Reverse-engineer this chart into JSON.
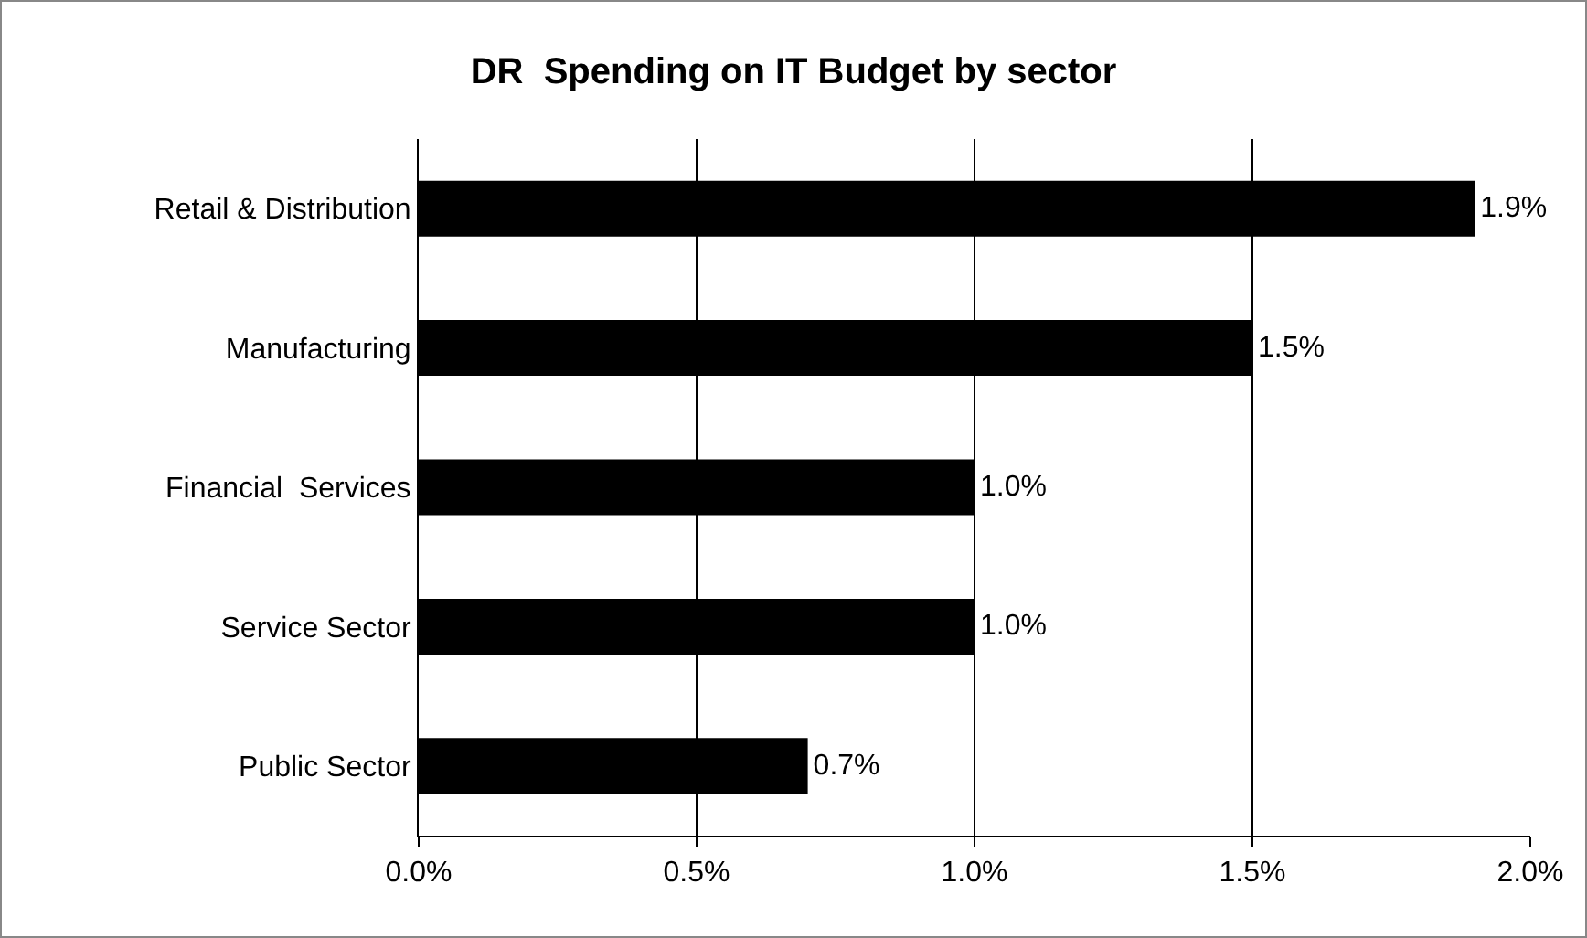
{
  "chart_data": {
    "type": "bar",
    "orientation": "horizontal",
    "title": "DR  Spending on IT Budget by sector",
    "categories": [
      "Retail & Distribution",
      "Manufacturing",
      "Financial  Services",
      "Service Sector",
      "Public Sector"
    ],
    "values": [
      1.9,
      1.5,
      1.0,
      1.0,
      0.7
    ],
    "value_labels": [
      "1.9%",
      "1.5%",
      "1.0%",
      "1.0%",
      "0.7%"
    ],
    "color": "#000000",
    "xlim": [
      0,
      2
    ],
    "xticks": [
      {
        "value": 0,
        "label": "0.0%"
      },
      {
        "value": 0.5,
        "label": "0.5%"
      },
      {
        "value": 1,
        "label": "1.0%"
      },
      {
        "value": 1.5,
        "label": "1.5%"
      },
      {
        "value": 2,
        "label": "2.0%"
      }
    ],
    "grid": "x"
  }
}
